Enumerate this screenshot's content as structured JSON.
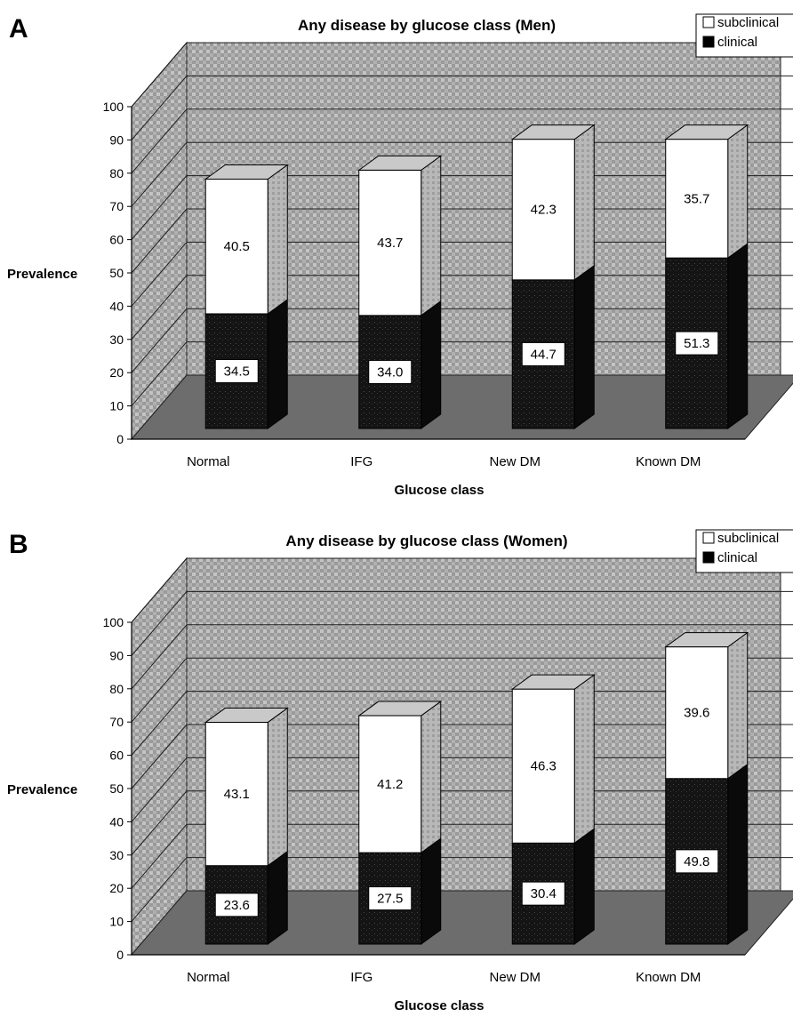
{
  "chart_data": [
    {
      "panel_label": "A",
      "type": "bar",
      "stacked": true,
      "three_d": true,
      "title": "Any disease by glucose class (Men)",
      "xlabel": "Glucose class",
      "ylabel": "Prevalence",
      "categories": [
        "Normal",
        "IFG",
        "New DM",
        "Known DM"
      ],
      "ylim": [
        0,
        100
      ],
      "yticks": [
        "0",
        "10",
        "20",
        "30",
        "40",
        "50",
        "60",
        "70",
        "80",
        "90",
        "100"
      ],
      "grid": true,
      "legend_position": "top-right",
      "series": [
        {
          "name": "clinical",
          "color": "#111111",
          "values": [
            34.5,
            34.0,
            44.7,
            51.3
          ],
          "labels": [
            "34.5",
            "34.0",
            "44.7",
            "51.3"
          ]
        },
        {
          "name": "subclinical",
          "color": "#ffffff",
          "values": [
            40.5,
            43.7,
            42.3,
            35.7
          ],
          "labels": [
            "40.5",
            "43.7",
            "42.3",
            "35.7"
          ]
        }
      ]
    },
    {
      "panel_label": "B",
      "type": "bar",
      "stacked": true,
      "three_d": true,
      "title": "Any disease by glucose class (Women)",
      "xlabel": "Glucose class",
      "ylabel": "Prevalence",
      "categories": [
        "Normal",
        "IFG",
        "New DM",
        "Known DM"
      ],
      "ylim": [
        0,
        100
      ],
      "yticks": [
        "0",
        "10",
        "20",
        "30",
        "40",
        "50",
        "60",
        "70",
        "80",
        "90",
        "100"
      ],
      "grid": true,
      "legend_position": "top-right",
      "series": [
        {
          "name": "clinical",
          "color": "#111111",
          "values": [
            23.6,
            27.5,
            30.4,
            49.8
          ],
          "labels": [
            "23.6",
            "27.5",
            "30.4",
            "49.8"
          ]
        },
        {
          "name": "subclinical",
          "color": "#ffffff",
          "values": [
            43.1,
            41.2,
            46.3,
            39.6
          ],
          "labels": [
            "43.1",
            "41.2",
            "46.3",
            "39.6"
          ]
        }
      ]
    }
  ]
}
